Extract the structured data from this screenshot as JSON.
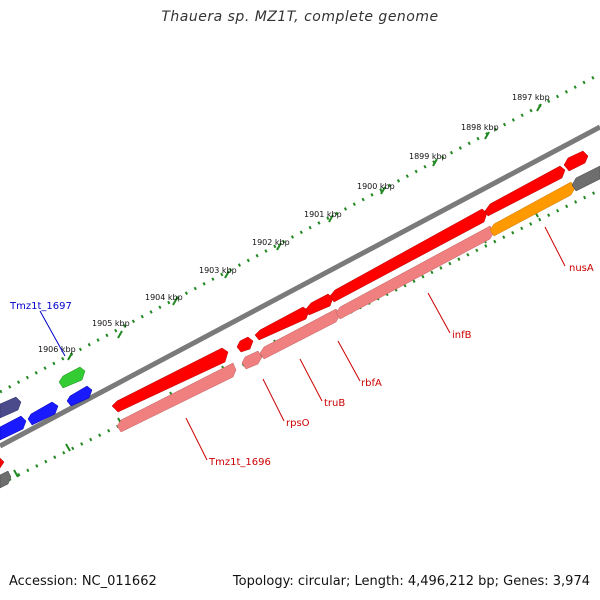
{
  "title": "Thauera sp. MZ1T, complete genome",
  "footer": {
    "accession": "Accession: NC_011662",
    "topology": "Topology: circular; Length: 4,496,212 bp; Genes: 3,974"
  },
  "ticks": [
    "1897 kbp",
    "1898 kbp",
    "1899 kbp",
    "1900 kbp",
    "1901 kbp",
    "1902 kbp",
    "1903 kbp",
    "1904 kbp",
    "1905 kbp",
    "1906 kbp"
  ],
  "gene_labels": [
    "nusA",
    "infB",
    "rbfA",
    "truB",
    "rpsO",
    "Tmz1t_1696",
    "Tmz1t_1697"
  ],
  "colors": {
    "backbone": "#7a7a7a",
    "cds_forward": "#ff0000",
    "cds_reverse": "#f08080",
    "orange_feature": "#ff9900",
    "gray_feature": "#6e6e6e",
    "blue_feature": "#1a1aff",
    "navy_feature": "#4b4b8c",
    "green_feature": "#33cc33",
    "tick_marks": "#228822",
    "label_red": "#cc0000",
    "label_blue": "#0000cc"
  }
}
